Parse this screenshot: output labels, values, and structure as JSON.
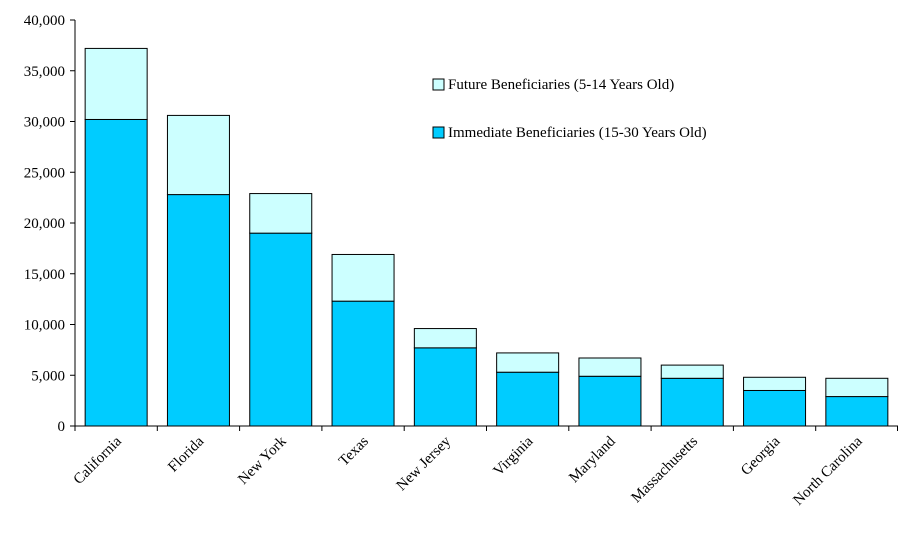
{
  "chart_data": {
    "type": "bar",
    "stacked": true,
    "categories": [
      "California",
      "Florida",
      "New York",
      "Texas",
      "New Jersey",
      "Virginia",
      "Maryland",
      "Massachusetts",
      "Georgia",
      "North Carolina"
    ],
    "series": [
      {
        "name": "Immediate Beneficiaries (15-30 Years Old)",
        "color": "#00ccff",
        "values": [
          30200,
          22800,
          19000,
          12300,
          7700,
          5300,
          4900,
          4700,
          3500,
          2900
        ]
      },
      {
        "name": "Future Beneficiaries (5-14 Years Old)",
        "color": "#ccffff",
        "values": [
          7000,
          7800,
          3900,
          4600,
          1900,
          1900,
          1800,
          1300,
          1300,
          1800
        ]
      }
    ],
    "yticks": [
      "0",
      "5,000",
      "10,000",
      "15,000",
      "20,000",
      "25,000",
      "30,000",
      "35,000",
      "40,000"
    ],
    "ylim": [
      0,
      40000
    ],
    "grid": false,
    "legend_position": "top-right",
    "legend_order": [
      "Future Beneficiaries (5-14 Years Old)",
      "Immediate Beneficiaries (15-30 Years Old)"
    ]
  }
}
